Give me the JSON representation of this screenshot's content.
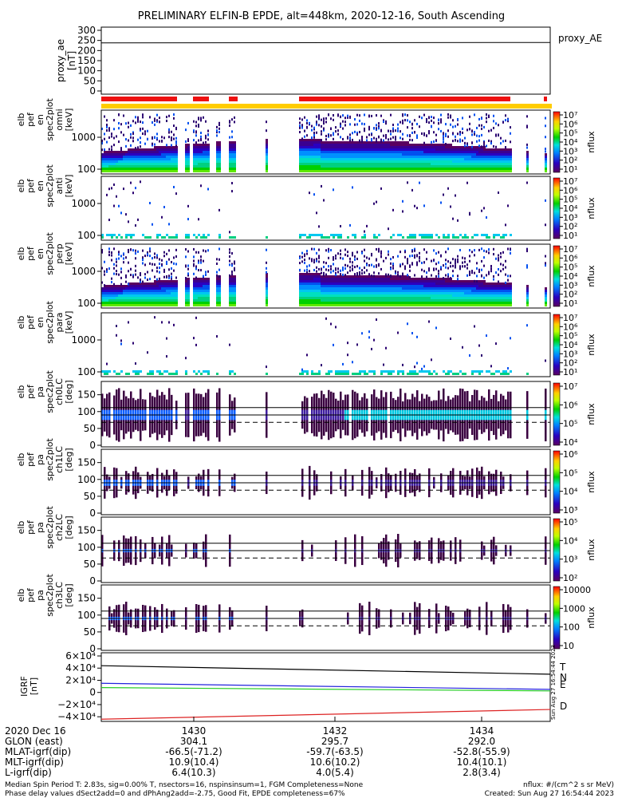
{
  "title": "PRELIMINARY ELFIN-B EPDE, alt=448km, 2020-12-16, South Ascending",
  "proxy": {
    "ylabel": [
      "proxy_ae",
      "[nT]"
    ],
    "yticks": [
      "300",
      "250",
      "200",
      "150",
      "100",
      "50",
      "0"
    ],
    "legend": "proxy_AE",
    "values": [
      238,
      240
    ]
  },
  "energy_panels": [
    {
      "ylabel": [
        "elb",
        "pef",
        "en",
        "spec2plot",
        "omni",
        "[keV]"
      ],
      "yticks": [
        "1000",
        "100"
      ],
      "cbar_ticks": [
        "10⁷",
        "10⁶",
        "10⁵",
        "10⁴",
        "10³",
        "10²",
        "10¹"
      ],
      "cbar_label": "nflux"
    },
    {
      "ylabel": [
        "elb",
        "pef",
        "en",
        "spec2plot",
        "anti",
        "[keV]"
      ],
      "yticks": [
        "1000",
        "100"
      ],
      "cbar_ticks": [
        "10⁷",
        "10⁶",
        "10⁵",
        "10⁴",
        "10³",
        "10²",
        "10¹"
      ],
      "cbar_label": "nflux"
    },
    {
      "ylabel": [
        "elb",
        "pef",
        "en",
        "spec2plot",
        "perp",
        "[keV]"
      ],
      "yticks": [
        "1000",
        "100"
      ],
      "cbar_ticks": [
        "10⁷",
        "10⁶",
        "10⁵",
        "10⁴",
        "10³",
        "10²",
        "10¹"
      ],
      "cbar_label": "nflux"
    },
    {
      "ylabel": [
        "elb",
        "pef",
        "en",
        "spec2plot",
        "para",
        "[keV]"
      ],
      "yticks": [
        "1000",
        "100"
      ],
      "cbar_ticks": [
        "10⁷",
        "10⁶",
        "10⁵",
        "10⁴",
        "10³",
        "10²",
        "10¹"
      ],
      "cbar_label": "nflux"
    }
  ],
  "pitch_panels": [
    {
      "ylabel": [
        "elb",
        "pef",
        "pa",
        "spec2plot",
        "ch0LC",
        "[deg]"
      ],
      "yticks": [
        "150",
        "100",
        "50",
        "0"
      ],
      "cbar_ticks": [
        "10⁷",
        "10⁶",
        "10⁵",
        "10⁴"
      ],
      "cbar_label": "nflux"
    },
    {
      "ylabel": [
        "elb",
        "pef",
        "pa",
        "spec2plot",
        "ch1LC",
        "[deg]"
      ],
      "yticks": [
        "150",
        "100",
        "50",
        "0"
      ],
      "cbar_ticks": [
        "10⁶",
        "10⁵",
        "10⁴",
        "10³"
      ],
      "cbar_label": "nflux"
    },
    {
      "ylabel": [
        "elb",
        "pef",
        "pa",
        "spec2plot",
        "ch2LC",
        "[deg]"
      ],
      "yticks": [
        "150",
        "100",
        "50",
        "0"
      ],
      "cbar_ticks": [
        "10⁵",
        "10⁴",
        "10³",
        "10²"
      ],
      "cbar_label": "nflux"
    },
    {
      "ylabel": [
        "elb",
        "pef",
        "pa",
        "spec2plot",
        "ch3LC",
        "[deg]"
      ],
      "yticks": [
        "150",
        "100",
        "50",
        "0"
      ],
      "cbar_ticks": [
        "10000",
        "1000",
        "100",
        "10"
      ],
      "cbar_label": "nflux"
    }
  ],
  "igrf": {
    "ylabel": [
      "IGRF",
      "[nT]"
    ],
    "yticks": [
      "6×10⁴",
      "4×10⁴",
      "2×10⁴",
      "0",
      "−2×10⁴",
      "−4×10⁴"
    ],
    "legend": [
      {
        "label": "T",
        "color": "#000000"
      },
      {
        "label": "N",
        "color": "#2222dd"
      },
      {
        "label": "E",
        "color": "#22cc22"
      },
      {
        "label": "D",
        "color": "#dd2222"
      }
    ],
    "series": {
      "T": [
        44000,
        30000
      ],
      "N": [
        15000,
        5000
      ],
      "E": [
        8000,
        2500
      ],
      "D": [
        -44000,
        -28000
      ]
    },
    "stamp": "Sun Aug 27 16:54:44 2023"
  },
  "xaxis": {
    "row_labels": [
      "2020 Dec 16",
      "GLON (east)",
      "MLAT-igrf(dip)",
      "MLT-igrf(dip)",
      "L-igrf(dip)"
    ],
    "ticks": [
      {
        "time": "1430",
        "col": [
          "304.1",
          "-66.5(-71.2)",
          "10.9(10.4)",
          "6.4(10.3)"
        ]
      },
      {
        "time": "1432",
        "col": [
          "295.7",
          "-59.7(-63.5)",
          "10.6(10.2)",
          "4.0(5.4)"
        ]
      },
      {
        "time": "1434",
        "col": [
          "292.0",
          "-52.8(-55.9)",
          "10.4(10.1)",
          "2.8(3.4)"
        ]
      }
    ]
  },
  "footer": {
    "left1": "Median Spin Period T: 2.83s, sig=0.00% T, nsectors=16, nspinsinsum=1, FGM Completeness=None",
    "left2": "Phase delay values dSect2add=0 and dPhAng2add=-2.75, Good Fit, EPDE completeness=67%",
    "right1": "nflux: #/(cm^2 s sr MeV)",
    "right2": "Created: Sun Aug 27 16:54:44 2023"
  },
  "colors": {
    "status_red": "#ee1111",
    "status_yellow": "#ffcc00"
  }
}
